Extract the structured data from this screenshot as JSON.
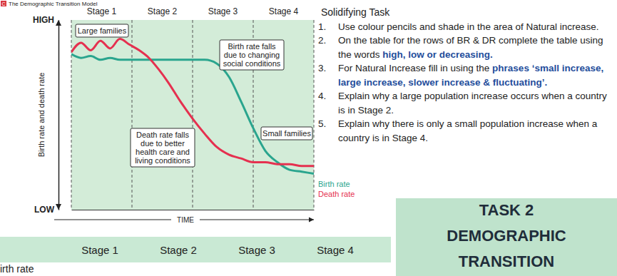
{
  "header": {
    "marker": "C",
    "title": "The Demographic Transition Model"
  },
  "chart_data": {
    "type": "line",
    "x_label": "TIME",
    "y_label": "Birth rate and death rate",
    "xlim": [
      0,
      100
    ],
    "xticks": [
      0,
      25,
      50,
      75,
      100
    ],
    "ylim": [
      0,
      100
    ],
    "yticks": [
      {
        "value": 0,
        "label": "LOW"
      },
      {
        "value": 100,
        "label": "HIGH"
      }
    ],
    "grid": true,
    "tick_labels": "y",
    "stage_labels": [
      "Stage 1",
      "Stage 2",
      "Stage 3",
      "Stage 4"
    ],
    "x": [
      0,
      4,
      8,
      12,
      16,
      20,
      24,
      28,
      32,
      36,
      40,
      45,
      50,
      55,
      60,
      65,
      70,
      75,
      80,
      85,
      90,
      95,
      100
    ],
    "series": [
      {
        "name": "Birth rate",
        "color": "#2aa58e",
        "values": [
          82,
          80,
          81,
          79,
          80,
          79,
          79,
          79,
          79,
          79,
          79,
          79,
          79,
          79,
          77,
          70,
          57,
          43,
          31,
          25,
          21,
          20,
          19
        ]
      },
      {
        "name": "Death rate",
        "color": "#e5304f",
        "values": [
          83,
          88,
          84,
          89,
          85,
          90,
          87,
          84,
          80,
          74,
          67,
          57,
          48,
          40,
          33,
          29,
          27,
          25,
          25,
          24,
          24,
          23,
          23
        ]
      }
    ],
    "annotations": [
      [
        "Large families"
      ],
      [
        "Birth rate falls",
        "due to changing",
        "social conditions"
      ],
      [
        "Death rate falls",
        "due to better",
        "health care and",
        "living conditions"
      ],
      [
        "Small families"
      ]
    ]
  },
  "tasks": {
    "title": "Solidifying Task",
    "items": [
      {
        "number": "1.",
        "parts": [
          {
            "text": "Use colour pencils and shade in the area of Natural increase."
          }
        ]
      },
      {
        "number": "2.",
        "parts": [
          {
            "text": "On the table for the rows of BR & DR complete the table using the words "
          },
          {
            "text": "high, low or decreasing.",
            "emphasis": true
          }
        ]
      },
      {
        "number": "3.",
        "parts": [
          {
            "text": "For Natural Increase fill in using the "
          },
          {
            "text": "phrases ‘small increase, large increase, slower increase & fluctuating’.",
            "emphasis": true
          }
        ]
      },
      {
        "number": "4.",
        "parts": [
          {
            "text": "Explain why a large population increase occurs when a country is in Stage 2."
          }
        ]
      },
      {
        "number": "5.",
        "parts": [
          {
            "text": "Explain why there is only a small population increase when a country is in Stage 4."
          }
        ]
      }
    ]
  },
  "table": {
    "columns": [
      "Stage 1",
      "Stage 2",
      "Stage 3",
      "Stage 4"
    ],
    "row_labels": [
      "irth rate"
    ]
  },
  "badge": {
    "lines": [
      "TASK 2",
      "DEMOGRAPHIC",
      "TRANSITION"
    ]
  }
}
